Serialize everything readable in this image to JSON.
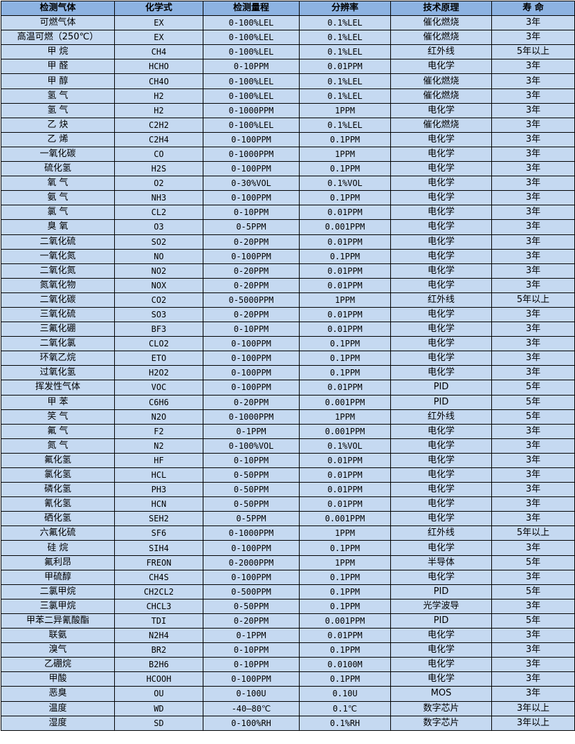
{
  "colors": {
    "header_bg": "#8db3e2",
    "row_bg": "#c5d9f1"
  },
  "headers": [
    "检测气体",
    "化学式",
    "检测量程",
    "分辨率",
    "技术原理",
    "寿 命"
  ],
  "rows": [
    [
      "可燃气体",
      "EX",
      "0-100%LEL",
      "0.1%LEL",
      "催化燃烧",
      "3年"
    ],
    [
      "高温可燃（250℃）",
      "EX",
      "0-100%LEL",
      "0.1%LEL",
      "催化燃烧",
      "3年"
    ],
    [
      "甲 烷",
      "CH4",
      "0-100%LEL",
      "0.1%LEL",
      "红外线",
      "5年以上"
    ],
    [
      "甲 醛",
      "HCHO",
      "0-10PPM",
      "0.01PPM",
      "电化学",
      "3年"
    ],
    [
      "甲 醇",
      "CH4O",
      "0-100%LEL",
      "0.1%LEL",
      "催化燃烧",
      "3年"
    ],
    [
      "氢 气",
      "H2",
      "0-100%LEL",
      "0.1%LEL",
      "催化燃烧",
      "3年"
    ],
    [
      "氢 气",
      "H2",
      "0-1000PPM",
      "1PPM",
      "电化学",
      "3年"
    ],
    [
      "乙 炔",
      "C2H2",
      "0-100%LEL",
      "0.1%LEL",
      "催化燃烧",
      "3年"
    ],
    [
      "乙 烯",
      "C2H4",
      "0-100PPM",
      "0.1PPM",
      "电化学",
      "3年"
    ],
    [
      "一氧化碳",
      "CO",
      "0-1000PPM",
      "1PPM",
      "电化学",
      "3年"
    ],
    [
      "硫化氢",
      "H2S",
      "0-100PPM",
      "0.1PPM",
      "电化学",
      "3年"
    ],
    [
      "氧 气",
      "O2",
      "0-30%VOL",
      "0.1%VOL",
      "电化学",
      "3年"
    ],
    [
      "氨 气",
      "NH3",
      "0-100PPM",
      "0.1PPM",
      "电化学",
      "3年"
    ],
    [
      "氯 气",
      "CL2",
      "0-10PPM",
      "0.01PPM",
      "电化学",
      "3年"
    ],
    [
      "臭 氧",
      "O3",
      "0-5PPM",
      "0.001PPM",
      "电化学",
      "3年"
    ],
    [
      "二氧化硫",
      "SO2",
      "0-20PPM",
      "0.01PPM",
      "电化学",
      "3年"
    ],
    [
      "一氧化氮",
      "NO",
      "0-100PPM",
      "0.1PPM",
      "电化学",
      "3年"
    ],
    [
      "二氧化氮",
      "NO2",
      "0-20PPM",
      "0.01PPM",
      "电化学",
      "3年"
    ],
    [
      "氮氧化物",
      "NOX",
      "0-20PPM",
      "0.01PPM",
      "电化学",
      "3年"
    ],
    [
      "二氧化碳",
      "CO2",
      "0-5000PPM",
      "1PPM",
      "红外线",
      "5年以上"
    ],
    [
      "三氧化硫",
      "SO3",
      "0-20PPM",
      "0.01PPM",
      "电化学",
      "3年"
    ],
    [
      "三氟化硼",
      "BF3",
      "0-10PPM",
      "0.01PPM",
      "电化学",
      "3年"
    ],
    [
      "二氧化氯",
      "CLO2",
      "0-100PPM",
      "0.1PPM",
      "电化学",
      "3年"
    ],
    [
      "环氧乙烷",
      "ETO",
      "0-100PPM",
      "0.1PPM",
      "电化学",
      "3年"
    ],
    [
      "过氧化氢",
      "H2O2",
      "0-100PPM",
      "0.1PPM",
      "电化学",
      "3年"
    ],
    [
      "挥发性气体",
      "VOC",
      "0-100PPM",
      "0.01PPM",
      "PID",
      "5年"
    ],
    [
      "甲 苯",
      "C6H6",
      "0-20PPM",
      "0.001PPM",
      "PID",
      "5年"
    ],
    [
      "笑 气",
      "N2O",
      "0-1000PPM",
      "1PPM",
      "红外线",
      "5年"
    ],
    [
      "氟 气",
      "F2",
      "0-1PPM",
      "0.001PPM",
      "电化学",
      "3年"
    ],
    [
      "氮 气",
      "N2",
      "0-100%VOL",
      "0.1%VOL",
      "电化学",
      "3年"
    ],
    [
      "氟化氢",
      "HF",
      "0-10PPM",
      "0.01PPM",
      "电化学",
      "3年"
    ],
    [
      "氯化氢",
      "HCL",
      "0-50PPM",
      "0.01PPM",
      "电化学",
      "3年"
    ],
    [
      "磷化氢",
      "PH3",
      "0-50PPM",
      "0.01PPM",
      "电化学",
      "3年"
    ],
    [
      "氰化氢",
      "HCN",
      "0-50PPM",
      "0.01PPM",
      "电化学",
      "3年"
    ],
    [
      "硒化氢",
      "SEH2",
      "0-5PPM",
      "0.001PPM",
      "电化学",
      "3年"
    ],
    [
      "六氟化硫",
      "SF6",
      "0-1000PPM",
      "1PPM",
      "红外线",
      "5年以上"
    ],
    [
      "硅 烷",
      "SIH4",
      "0-100PPM",
      "0.1PPM",
      "电化学",
      "3年"
    ],
    [
      "氟利昂",
      "FREON",
      "0-2000PPM",
      "1PPM",
      "半导体",
      "5年"
    ],
    [
      "甲硫醇",
      "CH4S",
      "0-100PPM",
      "0.1PPM",
      "电化学",
      "3年"
    ],
    [
      "二氯甲烷",
      "CH2CL2",
      "0-500PPM",
      "0.1PPM",
      "PID",
      "5年"
    ],
    [
      "三氯甲烷",
      "CHCL3",
      "0-50PPM",
      "0.1PPM",
      "光学波导",
      "3年"
    ],
    [
      "甲苯二异氰酸酯",
      "TDI",
      "0-20PPM",
      "0.001PPM",
      "PID",
      "5年"
    ],
    [
      "联氨",
      "N2H4",
      "0-1PPM",
      "0.01PPM",
      "电化学",
      "3年"
    ],
    [
      "溴气",
      "BR2",
      "0-10PPM",
      "0.1PPM",
      "电化学",
      "3年"
    ],
    [
      "乙硼烷",
      "B2H6",
      "0-10PPM",
      "0.0100M",
      "电化学",
      "3年"
    ],
    [
      "甲酸",
      "HCOOH",
      "0-100PPM",
      "0.1PPM",
      "电化学",
      "3年"
    ],
    [
      "恶臭",
      "OU",
      "0-100U",
      "0.10U",
      "MOS",
      "3年"
    ],
    [
      "温度",
      "WD",
      "-40—80℃",
      "0.1℃",
      "数字芯片",
      "3年以上"
    ],
    [
      "湿度",
      "SD",
      "0-100%RH",
      "0.1%RH",
      "数字芯片",
      "3年以上"
    ]
  ]
}
